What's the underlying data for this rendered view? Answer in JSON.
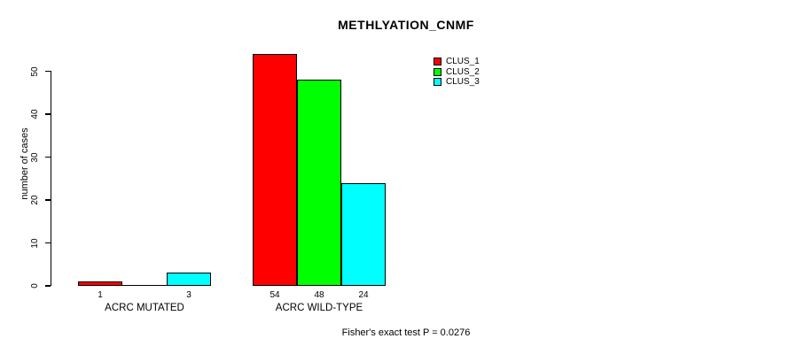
{
  "chart_data": {
    "type": "bar",
    "title": "METHLYATION_CNMF",
    "ylabel": "number of cases",
    "xlabel": "",
    "ylim": [
      0,
      50
    ],
    "yticks": [
      0,
      10,
      20,
      30,
      40,
      50
    ],
    "grid": false,
    "legend_position": "top-right",
    "categories": [
      "ACRC MUTATED",
      "ACRC WILD-TYPE"
    ],
    "groups": [
      {
        "label": "ACRC MUTATED",
        "values": [
          1,
          0,
          3
        ],
        "bar_labels": [
          "1",
          "",
          "3"
        ]
      },
      {
        "label": "ACRC WILD-TYPE",
        "values": [
          54,
          48,
          24
        ],
        "bar_labels": [
          "54",
          "48",
          "24"
        ]
      }
    ],
    "series": [
      {
        "name": "CLUS_1",
        "color": "#FF0000"
      },
      {
        "name": "CLUS_2",
        "color": "#00FF00"
      },
      {
        "name": "CLUS_3",
        "color": "#00FFFF"
      }
    ],
    "annotation": "Fisher's exact test P = 0.0276"
  }
}
